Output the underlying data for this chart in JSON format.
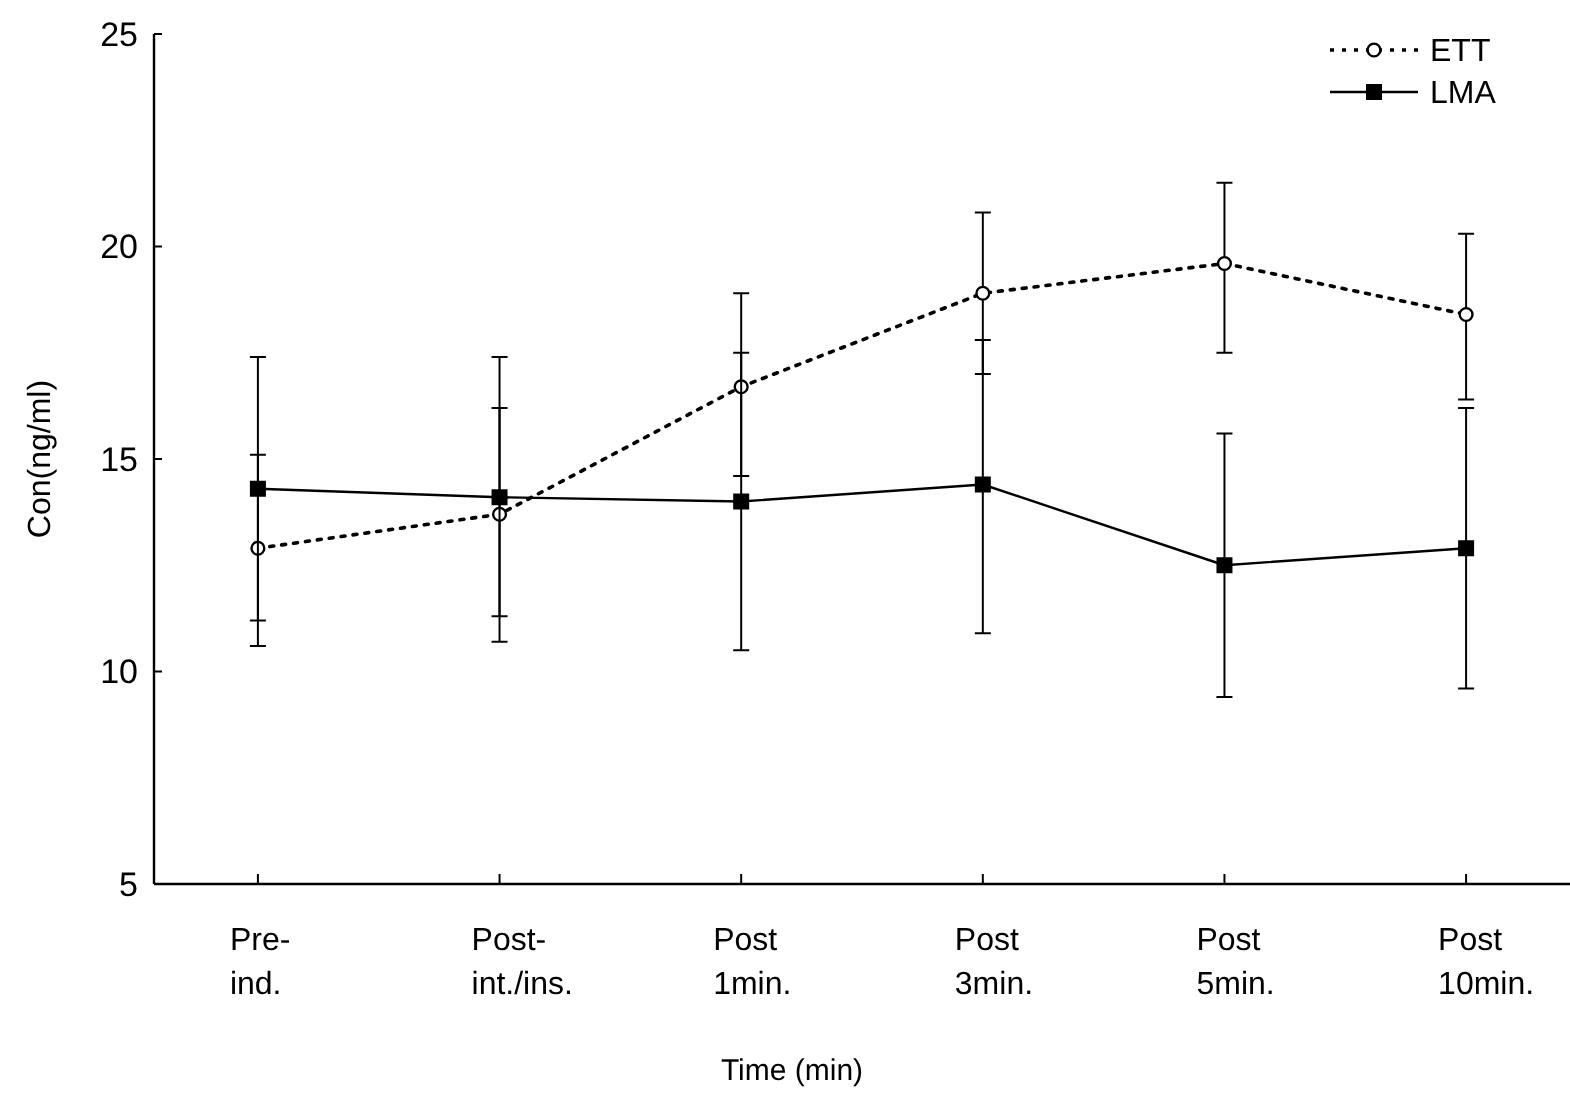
{
  "chart_data": {
    "type": "line",
    "xlabel": "Time (min)",
    "ylabel": "Con(ng/ml)",
    "categories": [
      "Pre-\nind.",
      "Post-\nint./ins.",
      "Post\n1min.",
      "Post\n3min.",
      "Post\n5min.",
      "Post\n10min."
    ],
    "ylim": [
      5,
      25
    ],
    "yticks": [
      5,
      10,
      15,
      20,
      25
    ],
    "grid": false,
    "legend": "top right",
    "series": [
      {
        "name": "ETT",
        "color": "#000000",
        "marker": "circle",
        "line_style": "dotted",
        "values": [
          12.9,
          13.7,
          16.7,
          18.9,
          19.6,
          18.4
        ],
        "errors": [
          [
            11.2,
            15.1
          ],
          [
            11.3,
            16.2
          ],
          [
            14.6,
            18.9
          ],
          [
            17.0,
            20.8
          ],
          [
            17.5,
            21.5
          ],
          [
            16.4,
            20.3
          ]
        ]
      },
      {
        "name": "LMA",
        "color": "#000000",
        "marker": "square",
        "line_style": "solid",
        "values": [
          14.3,
          14.1,
          14.0,
          14.4,
          12.5,
          12.9
        ],
        "errors": [
          [
            10.6,
            17.4
          ],
          [
            10.7,
            17.4
          ],
          [
            10.5,
            17.5
          ],
          [
            10.9,
            17.8
          ],
          [
            9.4,
            15.6
          ],
          [
            9.6,
            16.2
          ]
        ]
      }
    ]
  }
}
